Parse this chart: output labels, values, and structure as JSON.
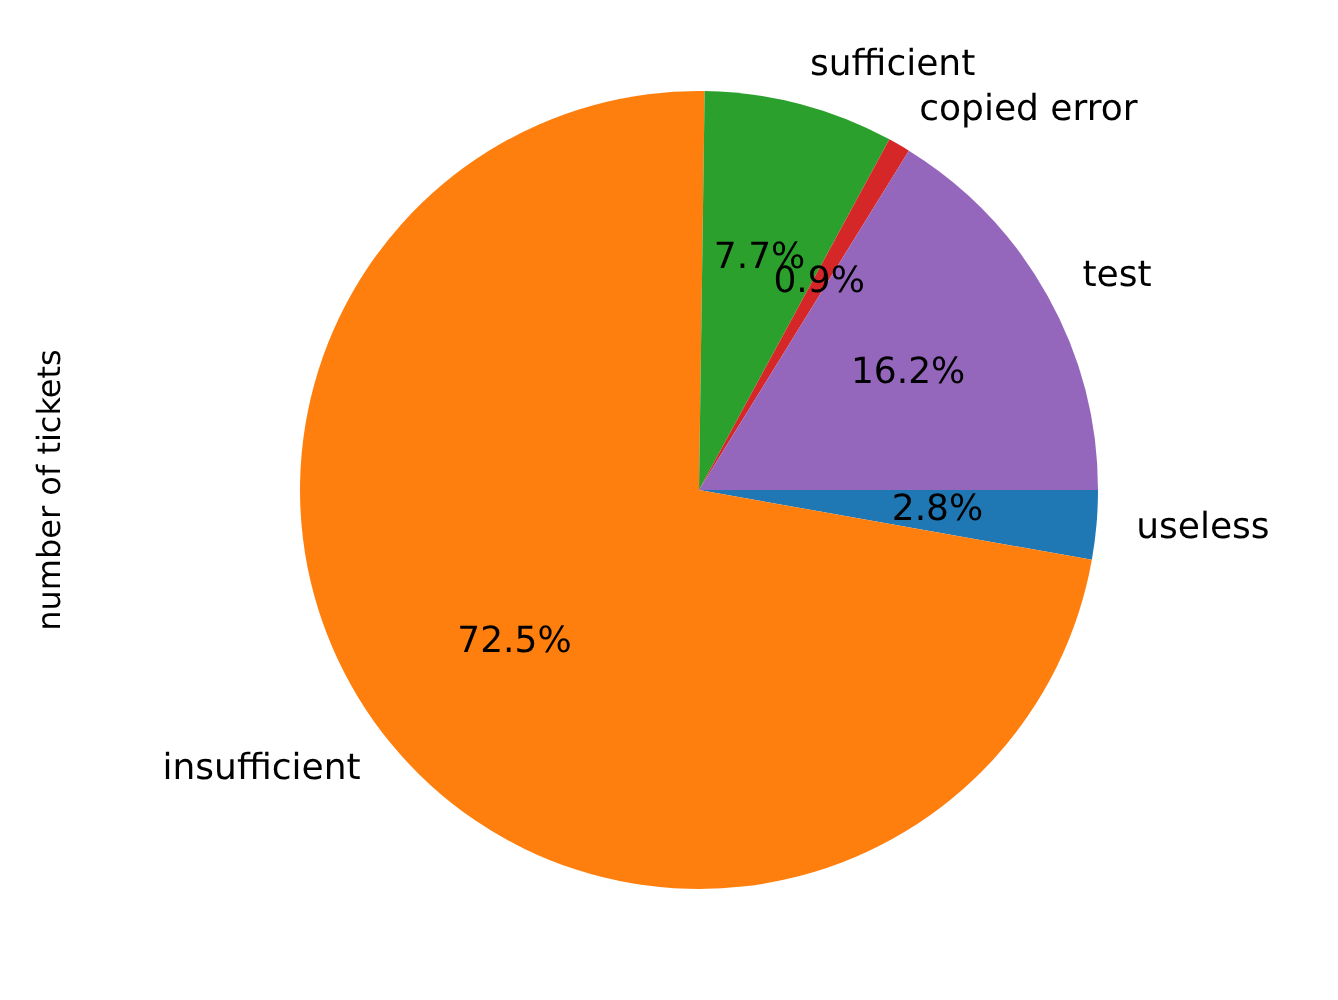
{
  "chart_data": {
    "type": "pie",
    "ylabel": "number of tickets",
    "categories": [
      "useless",
      "insufficient",
      "sufficient",
      "copied error",
      "test"
    ],
    "values": [
      2.8,
      72.5,
      7.7,
      0.9,
      16.2
    ],
    "value_labels": [
      "2.8%",
      "72.5%",
      "7.7%",
      "0.9%",
      "16.2%"
    ],
    "colors": [
      "#1f77b4",
      "#ff7f0e",
      "#2ca02c",
      "#d62728",
      "#9467bd"
    ],
    "legend": false
  }
}
